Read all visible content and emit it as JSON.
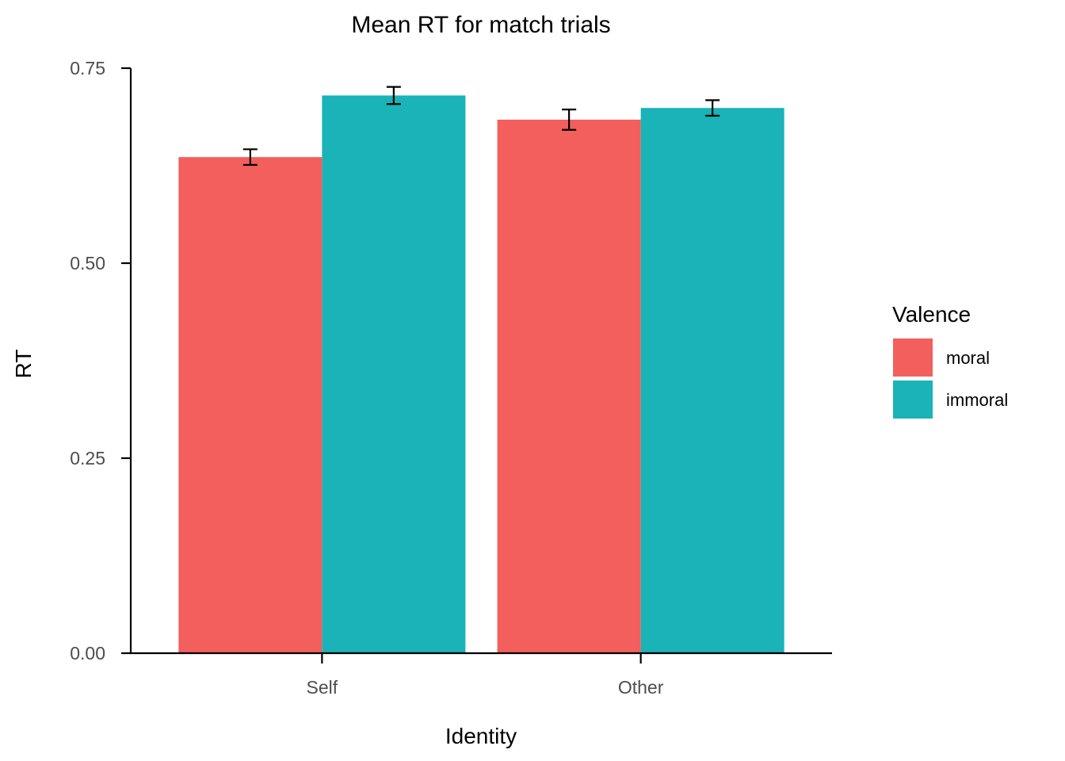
{
  "chart_data": {
    "type": "bar",
    "title": "Mean RT for match trials",
    "xlabel": "Identity",
    "ylabel": "RT",
    "categories": [
      "Self",
      "Other"
    ],
    "series": [
      {
        "name": "moral",
        "color": "#F25F5C",
        "values": [
          0.636,
          0.684
        ],
        "error": [
          0.01,
          0.013
        ]
      },
      {
        "name": "immoral",
        "color": "#1AB3B7",
        "values": [
          0.715,
          0.699
        ],
        "error": [
          0.011,
          0.01
        ]
      }
    ],
    "ylim": [
      0,
      0.75
    ],
    "yticks": [
      0,
      0.25,
      0.5,
      0.75
    ],
    "ytick_labels": [
      "0.00",
      "0.25",
      "0.50",
      "0.75"
    ],
    "legend": {
      "title": "Valence",
      "placement": "right"
    },
    "grid": false
  }
}
